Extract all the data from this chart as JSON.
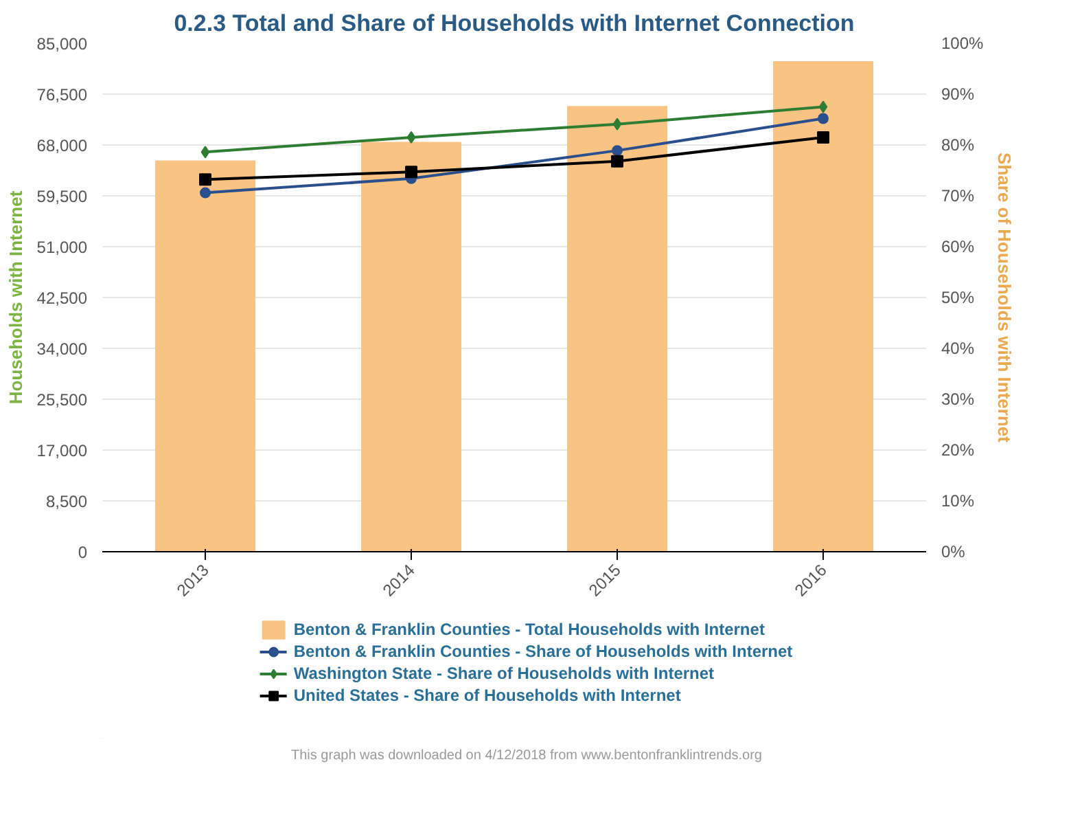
{
  "chart_data": {
    "type": "bar",
    "title": "0.2.3 Total and Share of Households with Internet Connection",
    "ylabel": "Households with Internet",
    "y2label": "Share of Households with Internet",
    "categories": [
      "2013",
      "2014",
      "2015",
      "2016"
    ],
    "series": [
      {
        "name": "Benton & Franklin Counties - Total Households with Internet",
        "color": "#f9c384",
        "values": [
          65300,
          68400,
          74400,
          81900
        ]
      },
      {
        "name": "Benton & Franklin Counties - Share of Households with Internet",
        "type": "line",
        "axis": "y2",
        "marker": "circle",
        "color": "#2b4f8c",
        "values": [
          70.6,
          73.4,
          78.9,
          85.2
        ]
      },
      {
        "name": "Washington State - Share of Households with Internet",
        "type": "line",
        "axis": "y2",
        "marker": "diamond",
        "color": "#2e7d32",
        "values": [
          78.6,
          81.5,
          84.1,
          87.5
        ]
      },
      {
        "name": "United States - Share of Households with Internet",
        "type": "line",
        "axis": "y2",
        "marker": "square",
        "color": "#000000",
        "values": [
          73.2,
          74.7,
          76.8,
          81.5
        ]
      }
    ],
    "ylim": [
      0,
      85000
    ],
    "yticks": [
      {
        "value": 0,
        "label": "0"
      },
      {
        "value": 8500,
        "label": "8,500"
      },
      {
        "value": 17000,
        "label": "17,000"
      },
      {
        "value": 25500,
        "label": "25,500"
      },
      {
        "value": 34000,
        "label": "34,000"
      },
      {
        "value": 42500,
        "label": "42,500"
      },
      {
        "value": 51000,
        "label": "51,000"
      },
      {
        "value": 59500,
        "label": "59,500"
      },
      {
        "value": 68000,
        "label": "68,000"
      },
      {
        "value": 76500,
        "label": "76,500"
      },
      {
        "value": 85000,
        "label": "85,000"
      }
    ],
    "y2lim": [
      0,
      100
    ],
    "y2ticks": [
      {
        "value": 0,
        "label": "0%"
      },
      {
        "value": 10,
        "label": "10%"
      },
      {
        "value": 20,
        "label": "20%"
      },
      {
        "value": 30,
        "label": "30%"
      },
      {
        "value": 40,
        "label": "40%"
      },
      {
        "value": 50,
        "label": "50%"
      },
      {
        "value": 60,
        "label": "60%"
      },
      {
        "value": 70,
        "label": "70%"
      },
      {
        "value": 80,
        "label": "80%"
      },
      {
        "value": 90,
        "label": "90%"
      },
      {
        "value": 100,
        "label": "100%"
      }
    ],
    "grid": "y",
    "legend": "bottom",
    "line_style": "solid",
    "annotations": [
      "This graph was downloaded on 4/12/2018 from www.bentonfranklintrends.org"
    ]
  }
}
